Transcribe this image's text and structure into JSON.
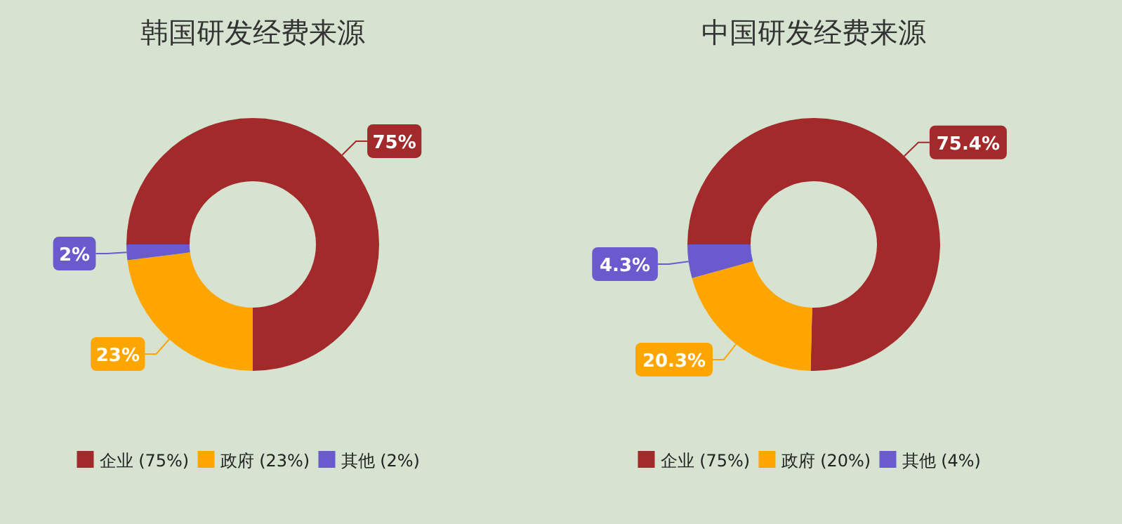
{
  "chart_data": [
    {
      "type": "donut",
      "title": "韩国研发经费来源",
      "categories": [
        "企业 (75%)",
        "政府 (23%)",
        "其他 (2%)"
      ],
      "values": [
        75,
        23,
        2
      ],
      "colors": [
        "#a32a2a",
        "#ffa500",
        "#6a5acd"
      ],
      "value_labels": [
        "75%",
        "23%",
        "2%"
      ],
      "legend": "bottom"
    },
    {
      "type": "donut",
      "title": "中国研发经费来源",
      "categories": [
        "企业 (75%)",
        "政府 (20%)",
        "其他 (4%)"
      ],
      "values": [
        75.4,
        20.3,
        4.3
      ],
      "colors": [
        "#a32a2a",
        "#ffa500",
        "#6a5acd"
      ],
      "value_labels": [
        "75.4%",
        "20.3%",
        "4.3%"
      ],
      "legend": "bottom"
    }
  ]
}
